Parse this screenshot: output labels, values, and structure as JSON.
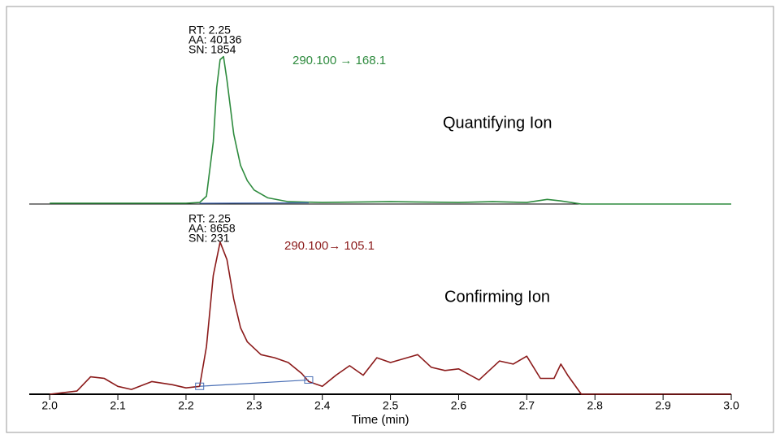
{
  "chart_data": [
    {
      "type": "line",
      "title": "Quantifying Ion",
      "transition": "290.100 → 168.1",
      "peak_labels": [
        "RT: 2.25",
        "AA: 40136",
        "SN: 1854"
      ],
      "xlim": [
        1.97,
        3.0
      ],
      "ylim": [
        0,
        100
      ],
      "series": [
        {
          "color": "#2e8b3e",
          "x": [
            2.0,
            2.1,
            2.2,
            2.22,
            2.23,
            2.24,
            2.245,
            2.25,
            2.255,
            2.26,
            2.27,
            2.28,
            2.29,
            2.3,
            2.32,
            2.35,
            2.4,
            2.5,
            2.6,
            2.65,
            2.7,
            2.73,
            2.75,
            2.78,
            3.0
          ],
          "values": [
            0.5,
            0.5,
            0.5,
            1,
            5,
            40,
            75,
            93,
            95,
            80,
            45,
            25,
            15,
            9,
            4,
            1.5,
            1,
            1.5,
            1,
            1.5,
            1,
            3,
            2,
            0,
            0
          ]
        }
      ],
      "baseline": {
        "color": "#4a6fb5",
        "x": [
          2.22,
          2.38
        ],
        "values": [
          0.5,
          0.8
        ]
      }
    },
    {
      "type": "line",
      "title": "Confirming Ion",
      "transition": "290.100→ 105.1",
      "peak_labels": [
        "RT: 2.25",
        "AA: 8658",
        "SN: 231"
      ],
      "xlim": [
        1.97,
        3.0
      ],
      "ylim": [
        0,
        100
      ],
      "xlabel": "Time (min)",
      "xticks": [
        {
          "value": 2,
          "label": "2.0"
        },
        2.1,
        2.2,
        2.3,
        2.4,
        2.5,
        2.6,
        2.7,
        2.8,
        2.9,
        {
          "value": 3,
          "label": "3.0"
        }
      ],
      "series": [
        {
          "color": "#8b1a1a",
          "x": [
            2.0,
            2.04,
            2.06,
            2.08,
            2.1,
            2.12,
            2.15,
            2.18,
            2.2,
            2.22,
            2.23,
            2.24,
            2.25,
            2.26,
            2.27,
            2.28,
            2.29,
            2.31,
            2.33,
            2.35,
            2.37,
            2.38,
            2.4,
            2.42,
            2.44,
            2.46,
            2.48,
            2.5,
            2.54,
            2.56,
            2.58,
            2.6,
            2.63,
            2.66,
            2.68,
            2.7,
            2.72,
            2.74,
            2.75,
            2.76,
            2.78,
            3.0
          ],
          "values": [
            0,
            2,
            11,
            10,
            5,
            3,
            8,
            6,
            4,
            5,
            30,
            75,
            96,
            85,
            60,
            42,
            33,
            25,
            23,
            20,
            13,
            8,
            5,
            12,
            18,
            12,
            23,
            20,
            25,
            17,
            15,
            16,
            9,
            21,
            19,
            24,
            10,
            10,
            19,
            12,
            0,
            0
          ]
        }
      ],
      "baseline": {
        "color": "#4a6fb5",
        "x": [
          2.22,
          2.38
        ],
        "values": [
          5,
          9
        ]
      }
    }
  ]
}
